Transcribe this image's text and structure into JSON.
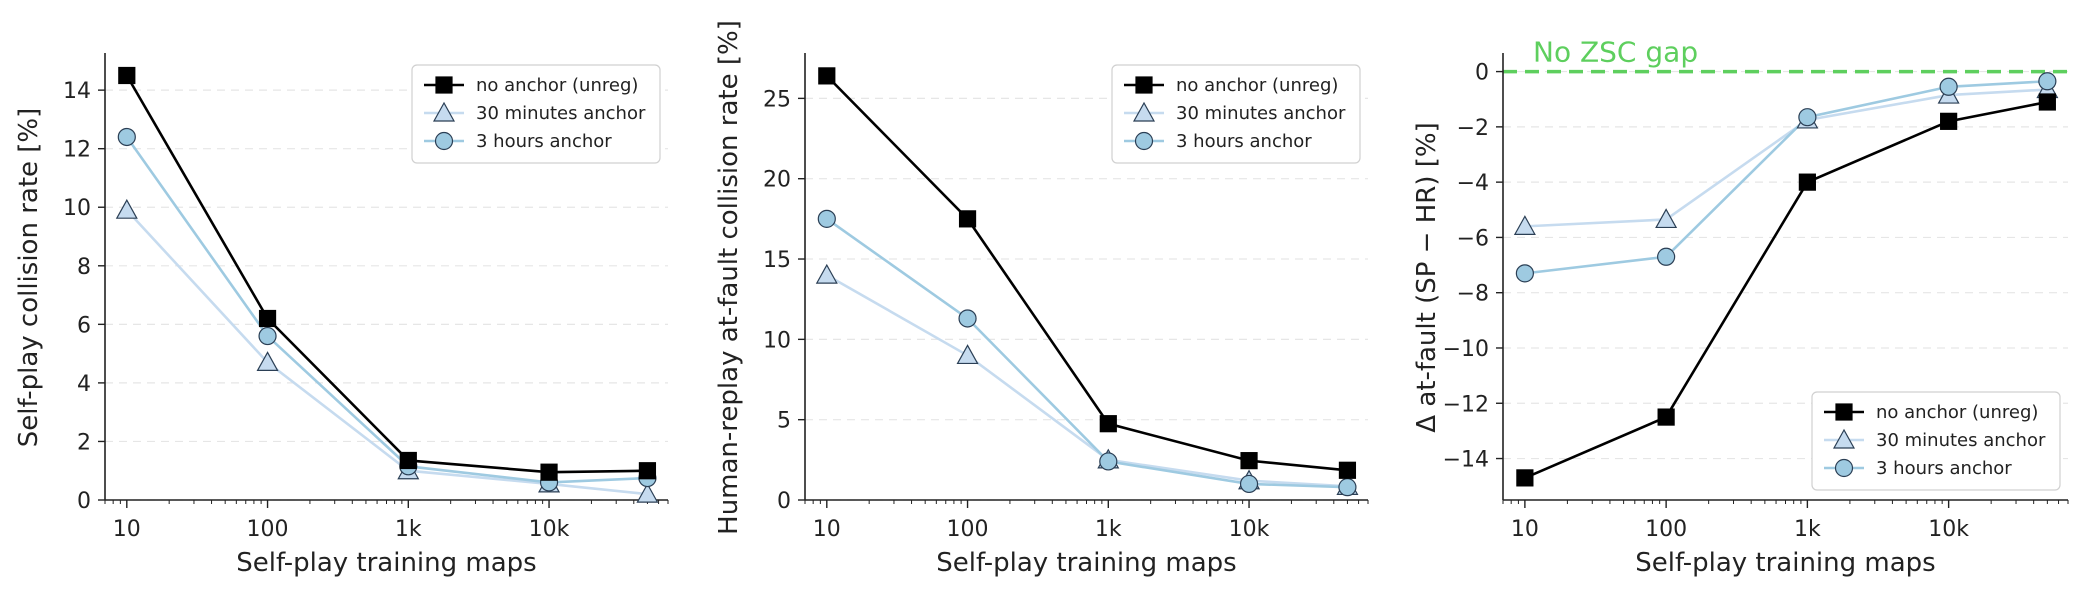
{
  "colors": {
    "no_anchor": "#000000",
    "anchor_30m": "#c6dbef",
    "anchor_3h": "#9ecae1",
    "marker_3h_fill": "#9ecae1",
    "marker_30m_fill": "#c6dbef",
    "zsc_line": "#5ecf5e",
    "grid": "#e6e6e6",
    "axis": "#222222"
  },
  "chart_data": [
    {
      "type": "line",
      "xscale": "log",
      "xlabel": "Self-play training maps",
      "ylabel": "Self-play collision rate [%]",
      "xlim": [
        7,
        70000
      ],
      "ylim": [
        0,
        15.2
      ],
      "yticks": [
        0,
        2,
        4,
        6,
        8,
        10,
        12,
        14
      ],
      "xticks": [
        10,
        100,
        1000,
        10000
      ],
      "xtick_labels": [
        "10",
        "100",
        "1k",
        "10k"
      ],
      "grid": "horizontal dashed",
      "legend": "top-right",
      "series": [
        {
          "name": "no anchor (unreg)",
          "marker": "square",
          "x": [
            10,
            100,
            1000,
            10000,
            50000
          ],
          "values": [
            14.5,
            6.2,
            1.35,
            0.95,
            1.0
          ]
        },
        {
          "name": "30 minutes anchor",
          "marker": "triangle",
          "x": [
            10,
            100,
            1000,
            10000,
            50000
          ],
          "values": [
            9.9,
            4.7,
            1.0,
            0.55,
            0.2
          ]
        },
        {
          "name": "3 hours anchor",
          "marker": "circle",
          "x": [
            10,
            100,
            1000,
            10000,
            50000
          ],
          "values": [
            12.4,
            5.6,
            1.15,
            0.6,
            0.75
          ]
        }
      ]
    },
    {
      "type": "line",
      "xscale": "log",
      "xlabel": "Self-play training maps",
      "ylabel": "Human-replay at-fault collision rate [%]",
      "xlim": [
        7,
        70000
      ],
      "ylim": [
        0,
        27.7
      ],
      "yticks": [
        0,
        5,
        10,
        15,
        20,
        25
      ],
      "xticks": [
        10,
        100,
        1000,
        10000
      ],
      "xtick_labels": [
        "10",
        "100",
        "1k",
        "10k"
      ],
      "grid": "horizontal dashed",
      "legend": "top-right",
      "series": [
        {
          "name": "no anchor (unreg)",
          "marker": "square",
          "x": [
            10,
            100,
            1000,
            10000,
            50000
          ],
          "values": [
            26.4,
            17.5,
            4.75,
            2.45,
            1.85
          ]
        },
        {
          "name": "30 minutes anchor",
          "marker": "triangle",
          "x": [
            10,
            100,
            1000,
            10000,
            50000
          ],
          "values": [
            14.0,
            9.0,
            2.5,
            1.2,
            0.85
          ]
        },
        {
          "name": "3 hours anchor",
          "marker": "circle",
          "x": [
            10,
            100,
            1000,
            10000,
            50000
          ],
          "values": [
            17.5,
            11.3,
            2.4,
            1.0,
            0.8
          ]
        }
      ]
    },
    {
      "type": "line",
      "xscale": "log",
      "xlabel": "Self-play training maps",
      "ylabel": "Δ at-fault (SP − HR) [%]",
      "xlim": [
        7,
        70000
      ],
      "ylim": [
        -15.5,
        0.6
      ],
      "yticks": [
        -14,
        -12,
        -10,
        -8,
        -6,
        -4,
        -2,
        0
      ],
      "ytick_labels": [
        "−14",
        "−12",
        "−10",
        "−8",
        "−6",
        "−4",
        "−2",
        "0"
      ],
      "xticks": [
        10,
        100,
        1000,
        10000
      ],
      "xtick_labels": [
        "10",
        "100",
        "1k",
        "10k"
      ],
      "grid": "horizontal dashed",
      "legend": "bottom-right",
      "annotation": {
        "text": "No ZSC gap",
        "y": 0
      },
      "series": [
        {
          "name": "no anchor (unreg)",
          "marker": "square",
          "x": [
            10,
            100,
            1000,
            10000,
            50000
          ],
          "values": [
            -14.7,
            -12.5,
            -4.0,
            -1.8,
            -1.1
          ]
        },
        {
          "name": "30 minutes anchor",
          "marker": "triangle",
          "x": [
            10,
            100,
            1000,
            10000,
            50000
          ],
          "values": [
            -5.6,
            -5.35,
            -1.75,
            -0.85,
            -0.65
          ]
        },
        {
          "name": "3 hours anchor",
          "marker": "circle",
          "x": [
            10,
            100,
            1000,
            10000,
            50000
          ],
          "values": [
            -7.3,
            -6.7,
            -1.65,
            -0.55,
            -0.35
          ]
        }
      ]
    }
  ]
}
